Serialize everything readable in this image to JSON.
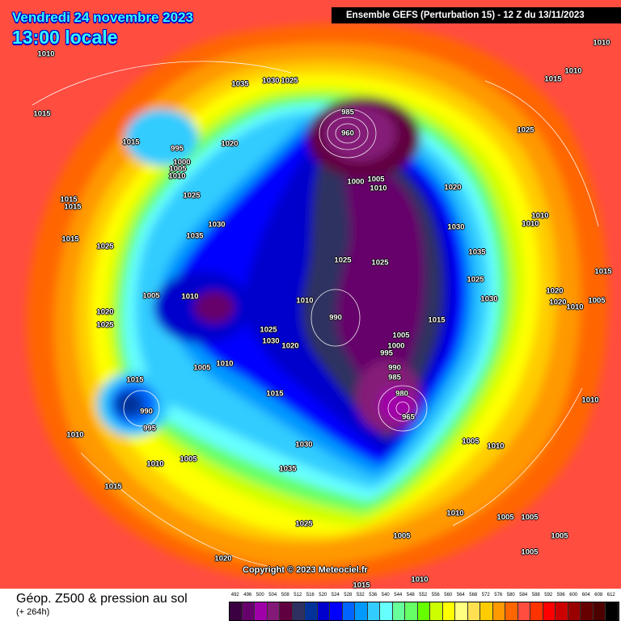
{
  "header": {
    "date": "Vendredi 24 novembre 2023",
    "time": "13:00 locale",
    "run": "Ensemble GEFS  (Perturbation 15)  -  12 Z du 13/11/2023"
  },
  "footer": {
    "title": "Géop. Z500 & pression au sol",
    "lead": "(+ 264h)",
    "copyright": "Copyright © 2023 Meteociel.fr"
  },
  "legend": {
    "labels": [
      "492",
      "496",
      "500",
      "504",
      "508",
      "512",
      "516",
      "520",
      "524",
      "528",
      "532",
      "536",
      "540",
      "544",
      "548",
      "552",
      "556",
      "560",
      "564",
      "568",
      "572",
      "576",
      "580",
      "584",
      "588",
      "592",
      "596",
      "600",
      "604",
      "608",
      "612"
    ],
    "colors": [
      "#3a0040",
      "#66006a",
      "#a000a8",
      "#841a78",
      "#600040",
      "#2e3060",
      "#003399",
      "#0000cc",
      "#0000ff",
      "#0066ff",
      "#0099ff",
      "#33ccff",
      "#66ffff",
      "#66ff99",
      "#66ff66",
      "#66ff00",
      "#ccff00",
      "#ffff00",
      "#ffff80",
      "#ffe050",
      "#ffcc00",
      "#ff9900",
      "#ff6600",
      "#ff4d40",
      "#ff3300",
      "#ff0000",
      "#cc0000",
      "#990000",
      "#660000",
      "#4d0000",
      "#000000"
    ]
  },
  "isobar_labels": [
    "1010",
    "1035",
    "1030",
    "1025",
    "1015",
    "1015",
    "995",
    "1020",
    "1000",
    "1005",
    "1010",
    "1025",
    "1015",
    "1015",
    "1015",
    "1025",
    "1030",
    "1035",
    "1005",
    "1010",
    "1020",
    "1025",
    "1015",
    "990",
    "995",
    "1010",
    "1010",
    "1005",
    "1015",
    "1035",
    "1030",
    "1025",
    "1020",
    "1015",
    "1010",
    "1005",
    "1005",
    "1010",
    "1010",
    "1005",
    "1005",
    "1005",
    "1005",
    "1010",
    "1005",
    "1020",
    "1020",
    "1010",
    "1015",
    "1010",
    "1010",
    "1025",
    "1015",
    "1010",
    "1010",
    "1030",
    "1025",
    "1035",
    "1030",
    "1020",
    "1015",
    "1025",
    "1025",
    "990",
    "1005",
    "1000",
    "995",
    "990",
    "985",
    "980",
    "965",
    "1010",
    "1020",
    "1025",
    "1030",
    "1005",
    "1010",
    "1015",
    "985",
    "960",
    "1005",
    "1010",
    "1000"
  ]
}
